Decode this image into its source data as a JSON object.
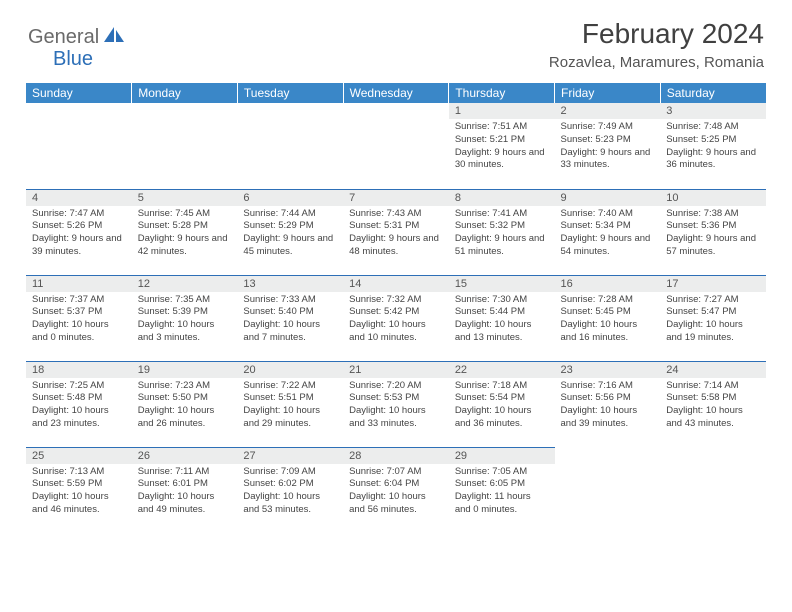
{
  "brand": {
    "part1": "General",
    "part2": "Blue"
  },
  "title": "February 2024",
  "location": "Rozavlea, Maramures, Romania",
  "colors": {
    "header_bg": "#3a87c8",
    "border": "#2d6fb7",
    "daynum_bg": "#eceded",
    "text": "#444444"
  },
  "weekdays": [
    "Sunday",
    "Monday",
    "Tuesday",
    "Wednesday",
    "Thursday",
    "Friday",
    "Saturday"
  ],
  "weeks": [
    [
      null,
      null,
      null,
      null,
      {
        "n": "1",
        "sr": "7:51 AM",
        "ss": "5:21 PM",
        "dl": "9 hours and 30 minutes."
      },
      {
        "n": "2",
        "sr": "7:49 AM",
        "ss": "5:23 PM",
        "dl": "9 hours and 33 minutes."
      },
      {
        "n": "3",
        "sr": "7:48 AM",
        "ss": "5:25 PM",
        "dl": "9 hours and 36 minutes."
      }
    ],
    [
      {
        "n": "4",
        "sr": "7:47 AM",
        "ss": "5:26 PM",
        "dl": "9 hours and 39 minutes."
      },
      {
        "n": "5",
        "sr": "7:45 AM",
        "ss": "5:28 PM",
        "dl": "9 hours and 42 minutes."
      },
      {
        "n": "6",
        "sr": "7:44 AM",
        "ss": "5:29 PM",
        "dl": "9 hours and 45 minutes."
      },
      {
        "n": "7",
        "sr": "7:43 AM",
        "ss": "5:31 PM",
        "dl": "9 hours and 48 minutes."
      },
      {
        "n": "8",
        "sr": "7:41 AM",
        "ss": "5:32 PM",
        "dl": "9 hours and 51 minutes."
      },
      {
        "n": "9",
        "sr": "7:40 AM",
        "ss": "5:34 PM",
        "dl": "9 hours and 54 minutes."
      },
      {
        "n": "10",
        "sr": "7:38 AM",
        "ss": "5:36 PM",
        "dl": "9 hours and 57 minutes."
      }
    ],
    [
      {
        "n": "11",
        "sr": "7:37 AM",
        "ss": "5:37 PM",
        "dl": "10 hours and 0 minutes."
      },
      {
        "n": "12",
        "sr": "7:35 AM",
        "ss": "5:39 PM",
        "dl": "10 hours and 3 minutes."
      },
      {
        "n": "13",
        "sr": "7:33 AM",
        "ss": "5:40 PM",
        "dl": "10 hours and 7 minutes."
      },
      {
        "n": "14",
        "sr": "7:32 AM",
        "ss": "5:42 PM",
        "dl": "10 hours and 10 minutes."
      },
      {
        "n": "15",
        "sr": "7:30 AM",
        "ss": "5:44 PM",
        "dl": "10 hours and 13 minutes."
      },
      {
        "n": "16",
        "sr": "7:28 AM",
        "ss": "5:45 PM",
        "dl": "10 hours and 16 minutes."
      },
      {
        "n": "17",
        "sr": "7:27 AM",
        "ss": "5:47 PM",
        "dl": "10 hours and 19 minutes."
      }
    ],
    [
      {
        "n": "18",
        "sr": "7:25 AM",
        "ss": "5:48 PM",
        "dl": "10 hours and 23 minutes."
      },
      {
        "n": "19",
        "sr": "7:23 AM",
        "ss": "5:50 PM",
        "dl": "10 hours and 26 minutes."
      },
      {
        "n": "20",
        "sr": "7:22 AM",
        "ss": "5:51 PM",
        "dl": "10 hours and 29 minutes."
      },
      {
        "n": "21",
        "sr": "7:20 AM",
        "ss": "5:53 PM",
        "dl": "10 hours and 33 minutes."
      },
      {
        "n": "22",
        "sr": "7:18 AM",
        "ss": "5:54 PM",
        "dl": "10 hours and 36 minutes."
      },
      {
        "n": "23",
        "sr": "7:16 AM",
        "ss": "5:56 PM",
        "dl": "10 hours and 39 minutes."
      },
      {
        "n": "24",
        "sr": "7:14 AM",
        "ss": "5:58 PM",
        "dl": "10 hours and 43 minutes."
      }
    ],
    [
      {
        "n": "25",
        "sr": "7:13 AM",
        "ss": "5:59 PM",
        "dl": "10 hours and 46 minutes."
      },
      {
        "n": "26",
        "sr": "7:11 AM",
        "ss": "6:01 PM",
        "dl": "10 hours and 49 minutes."
      },
      {
        "n": "27",
        "sr": "7:09 AM",
        "ss": "6:02 PM",
        "dl": "10 hours and 53 minutes."
      },
      {
        "n": "28",
        "sr": "7:07 AM",
        "ss": "6:04 PM",
        "dl": "10 hours and 56 minutes."
      },
      {
        "n": "29",
        "sr": "7:05 AM",
        "ss": "6:05 PM",
        "dl": "11 hours and 0 minutes."
      },
      null,
      null
    ]
  ],
  "labels": {
    "sunrise": "Sunrise: ",
    "sunset": "Sunset: ",
    "daylight": "Daylight: "
  }
}
